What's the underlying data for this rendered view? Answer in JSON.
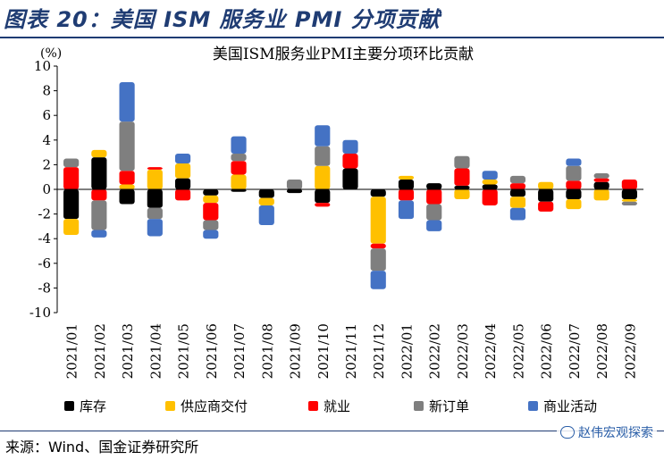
{
  "figure": {
    "title": "图表 20：美国 ISM 服务业 PMI 分项贡献",
    "source": "来源：Wind、国金证券研究所",
    "watermark": "赵伟宏观探索"
  },
  "chart_data": {
    "type": "bar",
    "stacked": true,
    "title": "美国ISM服务业PMI主要分项环比贡献",
    "ylabel": "(%)",
    "ylim": [
      -10,
      10
    ],
    "yticks": [
      10,
      8,
      6,
      4,
      2,
      0,
      -2,
      -4,
      -6,
      -8,
      -10
    ],
    "categories": [
      "2021/01",
      "2021/02",
      "2021/03",
      "2021/04",
      "2021/05",
      "2021/06",
      "2021/07",
      "2021/08",
      "2021/09",
      "2021/10",
      "2021/11",
      "2021/12",
      "2022/01",
      "2022/02",
      "2022/03",
      "2022/04",
      "2022/05",
      "2022/06",
      "2022/07",
      "2022/08",
      "2022/09"
    ],
    "legend_position": "bottom",
    "series": [
      {
        "name": "库存",
        "color": "#000000",
        "values": [
          -2.4,
          2.6,
          -1.2,
          -1.5,
          0.9,
          -0.5,
          -0.2,
          -0.7,
          -0.3,
          -1.1,
          1.7,
          -0.6,
          0.8,
          0.5,
          0.3,
          0.4,
          -0.6,
          -1.0,
          -0.8,
          0.6,
          -0.8
        ]
      },
      {
        "name": "供应商交付",
        "color": "#ffc000",
        "values": [
          -1.3,
          0.6,
          0.4,
          1.6,
          1.2,
          -0.6,
          1.2,
          -0.6,
          0.0,
          1.9,
          0.0,
          -3.8,
          0.3,
          0.0,
          -0.8,
          0.4,
          -0.9,
          0.6,
          -0.8,
          -0.9,
          -0.2
        ]
      },
      {
        "name": "就业",
        "color": "#ff0000",
        "values": [
          1.8,
          -0.9,
          1.1,
          0.2,
          -0.9,
          -1.4,
          1.1,
          0.0,
          0.0,
          -0.3,
          1.2,
          -0.4,
          -0.9,
          -1.2,
          1.4,
          -1.3,
          0.5,
          -0.8,
          0.7,
          0.3,
          0.8
        ]
      },
      {
        "name": "新订单",
        "color": "#7f7f7f",
        "values": [
          0.7,
          -2.4,
          4.0,
          -0.9,
          0.0,
          -0.8,
          0.6,
          0.0,
          0.8,
          1.6,
          0.0,
          -1.8,
          0.0,
          -1.3,
          1.0,
          0.0,
          0.6,
          0.0,
          1.2,
          0.4,
          -0.3
        ]
      },
      {
        "name": "商业活动",
        "color": "#4472c4",
        "values": [
          0.0,
          -0.6,
          3.2,
          -1.4,
          0.8,
          -0.7,
          1.4,
          -1.6,
          0.0,
          1.7,
          1.1,
          -1.5,
          -1.5,
          -0.9,
          0.0,
          0.7,
          -1.0,
          0.0,
          0.6,
          0.0,
          0.0
        ]
      }
    ]
  }
}
